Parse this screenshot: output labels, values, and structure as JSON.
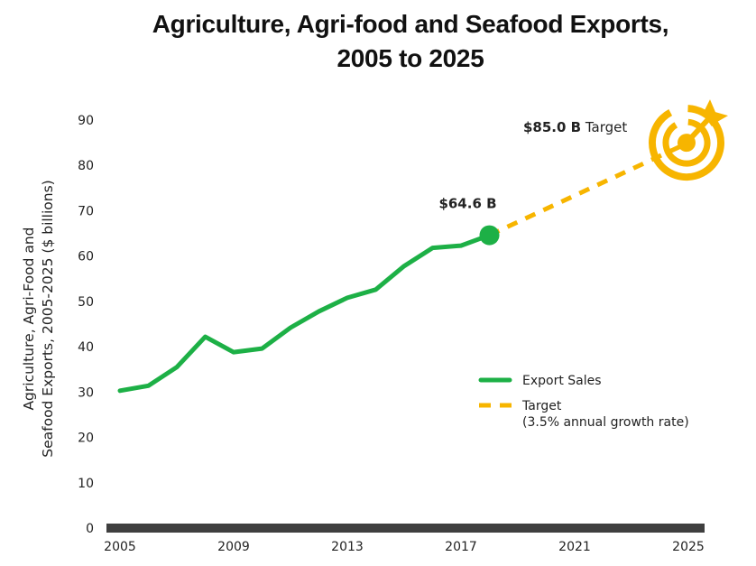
{
  "chart_data": {
    "type": "line",
    "title_lines": [
      "Agriculture, Agri-food and Seafood Exports,",
      "2005 to 2025"
    ],
    "xlabel": "",
    "ylabel_lines": [
      "Agriculture, Agri-Food and",
      "Seafood Exports, 2005-2025 ($ billions)"
    ],
    "xlim": [
      2005,
      2025
    ],
    "ylim": [
      0,
      90
    ],
    "x_ticks": [
      "2005",
      "2009",
      "2013",
      "2017",
      "2021",
      "2025"
    ],
    "y_ticks": [
      "0",
      "10",
      "20",
      "30",
      "40",
      "50",
      "60",
      "70",
      "80",
      "90"
    ],
    "grid": false,
    "series": [
      {
        "name": "Export Sales",
        "style": "solid",
        "color": "#1DB046",
        "x": [
          2005,
          2006,
          2007,
          2008,
          2009,
          2010,
          2011,
          2012,
          2013,
          2014,
          2015,
          2016,
          2017,
          2018
        ],
        "values": [
          30.3,
          31.4,
          35.5,
          42.2,
          38.8,
          39.6,
          44.2,
          47.8,
          50.8,
          52.6,
          57.8,
          61.8,
          62.3,
          64.6
        ]
      },
      {
        "name": "Target",
        "name_line2": "(3.5% annual growth rate)",
        "style": "dashed",
        "color": "#F7B500",
        "x": [
          2018,
          2025
        ],
        "values": [
          64.6,
          85.0
        ]
      }
    ],
    "annotations": [
      {
        "x": 2018,
        "y": 64.6,
        "bold": "$64.6 B",
        "text": ""
      },
      {
        "x": 2025,
        "y": 85.0,
        "bold": "$85.0 B",
        "text": "Target"
      }
    ],
    "legend_position": "lower-right",
    "baseline_color": "#3f3f3f"
  }
}
